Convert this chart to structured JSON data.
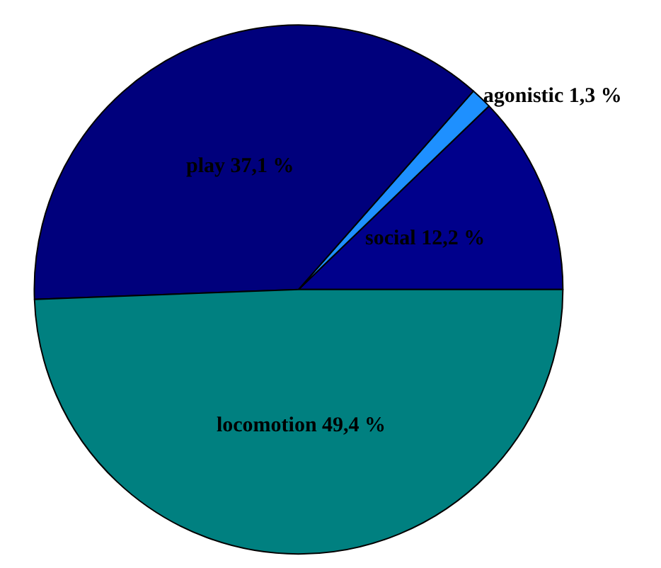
{
  "chart_data": {
    "type": "pie",
    "categories": [
      "social",
      "agonistic",
      "play",
      "locomotion"
    ],
    "values": [
      12.2,
      1.3,
      37.1,
      49.4
    ],
    "value_labels": [
      "12,2 %",
      "1,3 %",
      "37,1 %",
      "49,4 %"
    ],
    "colors": [
      "#00008b",
      "#1e90ff",
      "#00007c",
      "#008080"
    ],
    "legend": false
  }
}
